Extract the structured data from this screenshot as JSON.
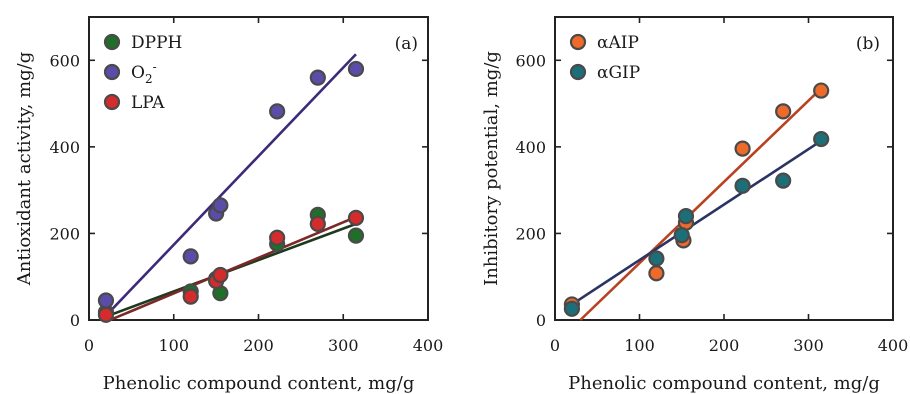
{
  "chart_data": [
    {
      "type": "scatter",
      "panel_label": "(a)",
      "xlabel": "Phenolic compound content, mg/g",
      "ylabel": "Antioxidant activity, mg/g",
      "xlim": [
        0,
        400
      ],
      "ylim": [
        0,
        700
      ],
      "xticks": [
        0,
        100,
        200,
        300,
        400
      ],
      "yticks": [
        0,
        200,
        400,
        600
      ],
      "grid": false,
      "legend_position": "top-left",
      "series": [
        {
          "name": "DPPH",
          "marker_color": "#1f6e2a",
          "line_color": "#1e3a1e",
          "points": [
            [
              20,
              18
            ],
            [
              120,
              66
            ],
            [
              150,
              95
            ],
            [
              155,
              62
            ],
            [
              222,
              176
            ],
            [
              270,
              243
            ],
            [
              315,
              195
            ]
          ],
          "fit": [
            [
              20,
              8
            ],
            [
              315,
              222
            ]
          ]
        },
        {
          "name": "O",
          "name_sub": "2",
          "name_sup": "-",
          "marker_color": "#5a4ca8",
          "line_color": "#3d2a78",
          "points": [
            [
              20,
              45
            ],
            [
              120,
              147
            ],
            [
              150,
              246
            ],
            [
              155,
              265
            ],
            [
              222,
              482
            ],
            [
              270,
              560
            ],
            [
              315,
              580
            ]
          ],
          "fit": [
            [
              20,
              10
            ],
            [
              315,
              614
            ]
          ]
        },
        {
          "name": "LPA",
          "marker_color": "#d42c2c",
          "line_color": "#7a2828",
          "points": [
            [
              20,
              12
            ],
            [
              120,
              54
            ],
            [
              150,
              90
            ],
            [
              155,
              104
            ],
            [
              222,
              190
            ],
            [
              270,
              222
            ],
            [
              315,
              236
            ]
          ],
          "fit": [
            [
              20,
              -4
            ],
            [
              315,
              238
            ]
          ]
        }
      ]
    },
    {
      "type": "scatter",
      "panel_label": "(b)",
      "xlabel": "Phenolic compound content, mg/g",
      "ylabel": "Inhibitory potential, mg/g",
      "xlim": [
        0,
        400
      ],
      "ylim": [
        0,
        700
      ],
      "xticks": [
        0,
        100,
        200,
        300,
        400
      ],
      "yticks": [
        0,
        200,
        400,
        600
      ],
      "grid": false,
      "legend_position": "top-left",
      "series": [
        {
          "name": "αAIP",
          "marker_color": "#ee6a2a",
          "line_color": "#b84222",
          "points": [
            [
              20,
              36
            ],
            [
              120,
              108
            ],
            [
              152,
              184
            ],
            [
              155,
              225
            ],
            [
              222,
              396
            ],
            [
              270,
              482
            ],
            [
              315,
              530
            ]
          ],
          "fit": [
            [
              30,
              0
            ],
            [
              315,
              535
            ]
          ]
        },
        {
          "name": "αGIP",
          "marker_color": "#1c6e78",
          "line_color": "#2a3460",
          "points": [
            [
              20,
              26
            ],
            [
              120,
              142
            ],
            [
              150,
              196
            ],
            [
              155,
              240
            ],
            [
              222,
              310
            ],
            [
              270,
              322
            ],
            [
              315,
              418
            ]
          ],
          "fit": [
            [
              20,
              36
            ],
            [
              315,
              414
            ]
          ]
        }
      ]
    }
  ]
}
